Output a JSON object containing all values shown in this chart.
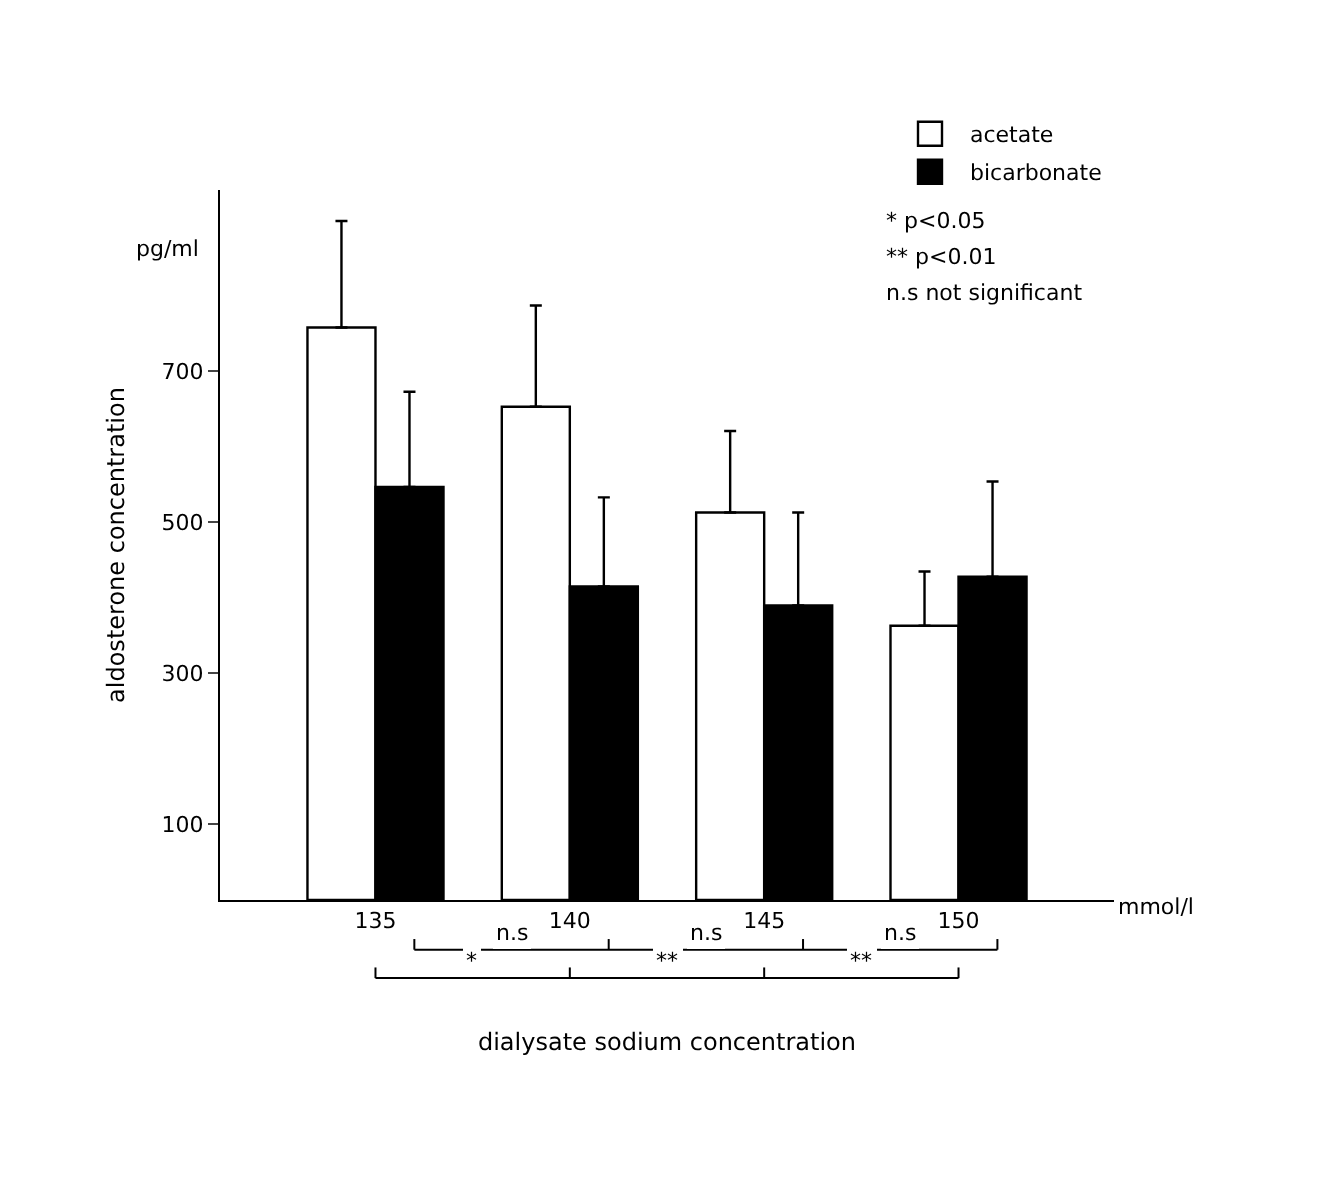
{
  "chart_data": {
    "type": "bar",
    "categories": [
      "135",
      "140",
      "145",
      "150"
    ],
    "series": [
      {
        "name": "acetate",
        "color": "#ffffff",
        "values": [
          758,
          653,
          513,
          363
        ],
        "errors": [
          [
            758,
            899
          ],
          [
            653,
            787
          ],
          [
            513,
            621
          ],
          [
            363,
            435
          ]
        ]
      },
      {
        "name": "bicarbonate",
        "color": "#000000",
        "values": [
          547,
          415,
          390,
          428
        ],
        "errors": [
          [
            547,
            673
          ],
          [
            415,
            533
          ],
          [
            390,
            513
          ],
          [
            428,
            554
          ]
        ]
      }
    ],
    "ylabel": "aldosterone concentration",
    "xlabel": "dialysate sodium concentration",
    "ylim": [
      0,
      940
    ],
    "yticks": [
      100,
      300,
      500,
      700
    ],
    "legend": "top right",
    "annotations": [
      "pg/ml",
      "mmol/l",
      "n.s",
      "n.s",
      "n.s",
      "*",
      "**",
      "**",
      "* p<0.05",
      "** p<0.01",
      "n.s not significant"
    ]
  }
}
